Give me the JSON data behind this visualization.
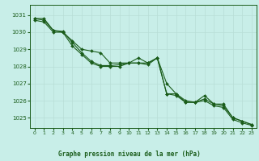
{
  "xlabel": "Graphe pression niveau de la mer (hPa)",
  "bg_color": "#c8eee8",
  "grid_color": "#b8ddd6",
  "line_color": "#1a5c1a",
  "marker": "D",
  "markersize": 2.0,
  "linewidth": 0.8,
  "ylim": [
    1024.4,
    1031.6
  ],
  "yticks": [
    1025,
    1026,
    1027,
    1028,
    1029,
    1030,
    1031
  ],
  "xlim": [
    -0.5,
    23.5
  ],
  "xticks": [
    0,
    1,
    2,
    3,
    4,
    5,
    6,
    7,
    8,
    9,
    10,
    11,
    12,
    13,
    14,
    15,
    16,
    17,
    18,
    19,
    20,
    21,
    22,
    23
  ],
  "series": [
    [
      1030.8,
      1030.8,
      1030.1,
      1030.0,
      1029.5,
      1029.0,
      1028.9,
      1028.8,
      1028.2,
      1028.2,
      1028.2,
      1028.5,
      1028.2,
      1028.5,
      1026.4,
      1026.4,
      1025.9,
      1025.9,
      1026.3,
      1025.8,
      1025.8,
      1025.0,
      1024.8,
      1024.6
    ],
    [
      1030.8,
      1030.7,
      1030.1,
      1030.05,
      1029.4,
      1028.8,
      1028.3,
      1028.05,
      1028.05,
      1028.1,
      1028.2,
      1028.2,
      1028.2,
      1028.5,
      1027.0,
      1026.4,
      1026.0,
      1025.9,
      1026.1,
      1025.8,
      1025.7,
      1025.0,
      1024.8,
      1024.6
    ],
    [
      1030.7,
      1030.6,
      1030.0,
      1030.0,
      1029.2,
      1028.7,
      1028.2,
      1028.0,
      1028.0,
      1028.0,
      1028.2,
      1028.2,
      1028.1,
      1028.5,
      1026.4,
      1026.3,
      1025.9,
      1025.9,
      1026.0,
      1025.7,
      1025.6,
      1024.9,
      1024.7,
      1024.55
    ]
  ]
}
